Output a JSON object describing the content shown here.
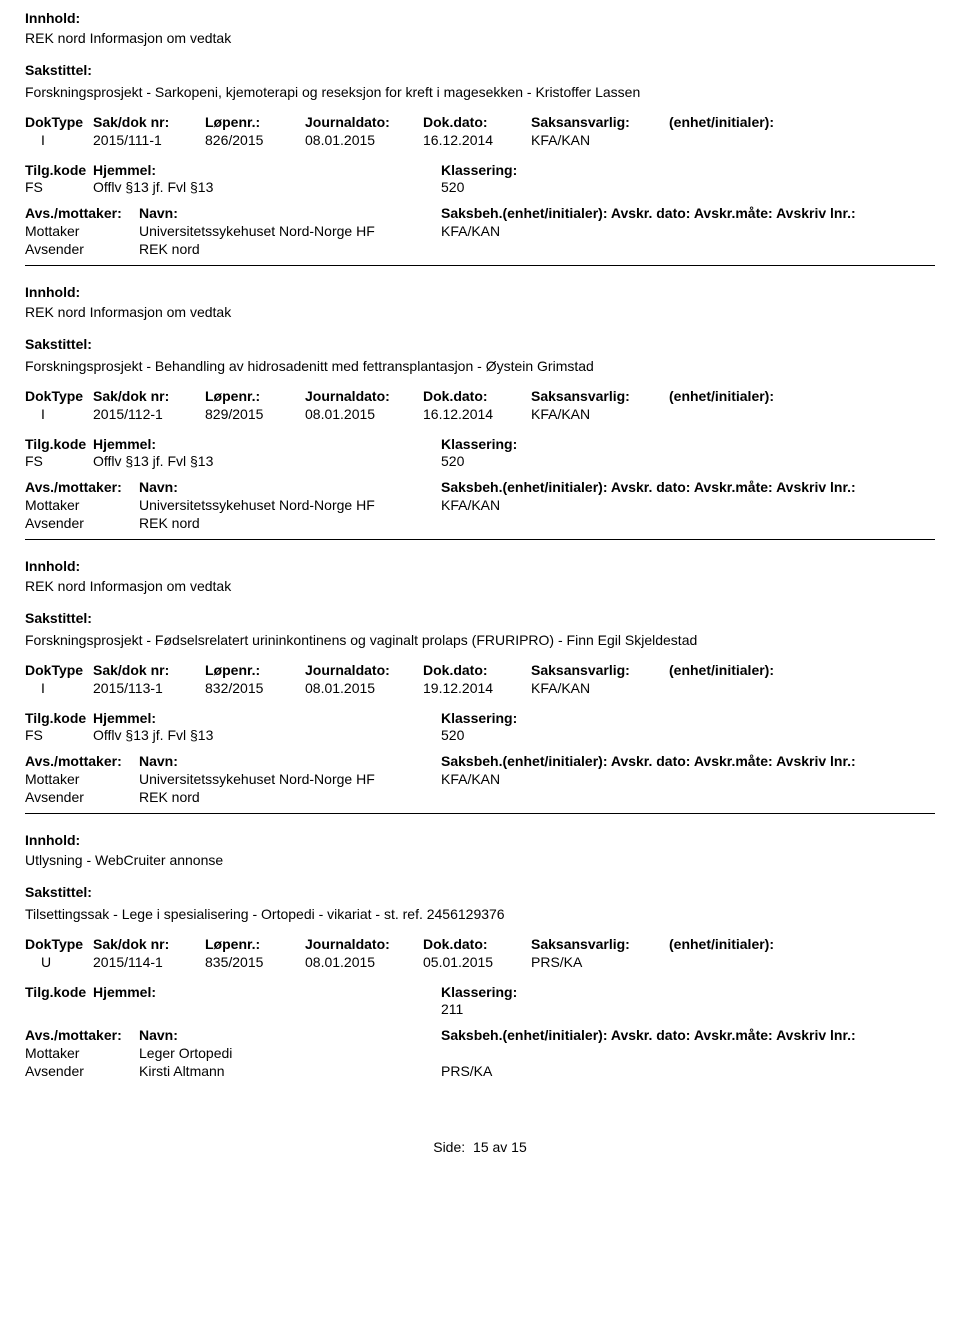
{
  "labels": {
    "innhold": "Innhold:",
    "sakstittel": "Sakstittel:",
    "doktype": "DokType",
    "sakdok": "Sak/dok nr:",
    "lopenr": "Løpenr.:",
    "journaldato": "Journaldato:",
    "dokdato": "Dok.dato:",
    "saksansvarlig": "Saksansvarlig:",
    "enhet": "(enhet/initialer):",
    "tilgkode": "Tilg.kode",
    "hjemmel": "Hjemmel:",
    "klassering": "Klassering:",
    "avsmottaker": "Avs./mottaker:",
    "navn": "Navn:",
    "saksbeh": "Saksbeh.(enhet/initialer): Avskr. dato:  Avskr.måte:  Avskriv lnr.:",
    "mottaker": "Mottaker",
    "avsender": "Avsender",
    "side": "Side:",
    "page": "15 av   15"
  },
  "records": [
    {
      "innhold": "REK nord Informasjon om vedtak",
      "sakstittel": "Forskningsprosjekt - Sarkopeni, kjemoterapi og reseksjon for kreft i magesekken - Kristoffer Lassen",
      "doktype": "I",
      "sakdok": "2015/111-1",
      "lopenr": "826/2015",
      "journaldato": "08.01.2015",
      "dokdato": "16.12.2014",
      "saksansvarlig": "KFA/KAN",
      "tilgkode": "FS",
      "hjemmel": "Offlv §13 jf. Fvl §13",
      "klassering": "520",
      "mottaker_navn": "Universitetssykehuset Nord-Norge HF",
      "mottaker_kode": "KFA/KAN",
      "avsender_navn": "REK nord",
      "avsender_kode": ""
    },
    {
      "innhold": "REK nord Informasjon om vedtak",
      "sakstittel": "Forskningsprosjekt - Behandling av hidrosadenitt med fettransplantasjon - Øystein Grimstad",
      "doktype": "I",
      "sakdok": "2015/112-1",
      "lopenr": "829/2015",
      "journaldato": "08.01.2015",
      "dokdato": "16.12.2014",
      "saksansvarlig": "KFA/KAN",
      "tilgkode": "FS",
      "hjemmel": "Offlv §13 jf. Fvl §13",
      "klassering": "520",
      "mottaker_navn": "Universitetssykehuset Nord-Norge HF",
      "mottaker_kode": "KFA/KAN",
      "avsender_navn": "REK nord",
      "avsender_kode": ""
    },
    {
      "innhold": "REK nord Informasjon om vedtak",
      "sakstittel": "Forskningsprosjekt - Fødselsrelatert urininkontinens og vaginalt prolaps (FRURIPRO) - Finn Egil Skjeldestad",
      "doktype": "I",
      "sakdok": "2015/113-1",
      "lopenr": "832/2015",
      "journaldato": "08.01.2015",
      "dokdato": "19.12.2014",
      "saksansvarlig": "KFA/KAN",
      "tilgkode": "FS",
      "hjemmel": "Offlv §13 jf. Fvl §13",
      "klassering": "520",
      "mottaker_navn": "Universitetssykehuset Nord-Norge HF",
      "mottaker_kode": "KFA/KAN",
      "avsender_navn": "REK nord",
      "avsender_kode": ""
    },
    {
      "innhold": "Utlysning - WebCruiter annonse",
      "sakstittel": "Tilsettingssak - Lege i spesialisering - Ortopedi - vikariat  - st. ref. 2456129376",
      "doktype": "U",
      "sakdok": "2015/114-1",
      "lopenr": "835/2015",
      "journaldato": "08.01.2015",
      "dokdato": "05.01.2015",
      "saksansvarlig": "PRS/KA",
      "tilgkode": "",
      "hjemmel": "",
      "klassering": "211",
      "mottaker_navn": "Leger Ortopedi",
      "mottaker_kode": "",
      "avsender_navn": "Kirsti Altmann",
      "avsender_kode": "PRS/KA"
    }
  ]
}
